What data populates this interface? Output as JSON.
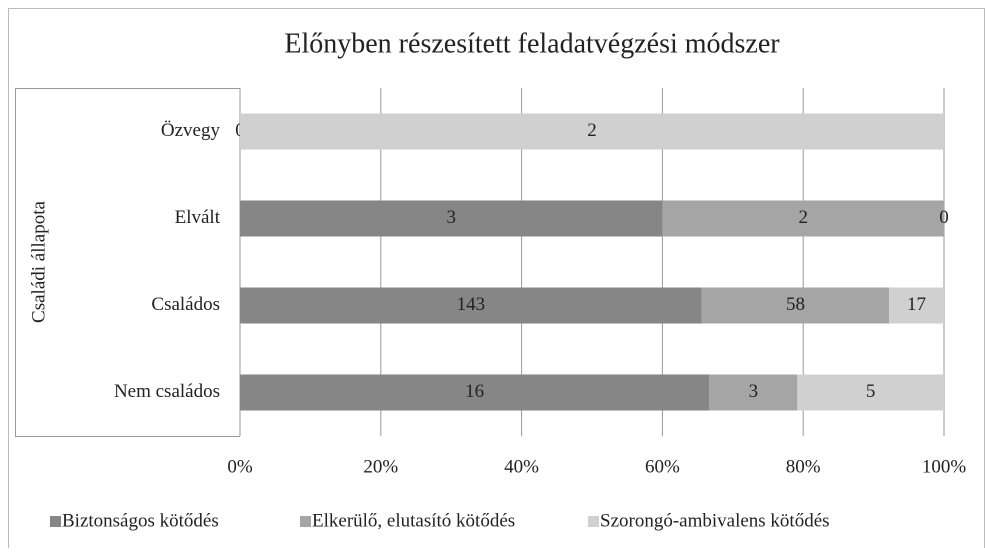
{
  "chart_data": {
    "type": "bar",
    "orientation": "horizontal",
    "stacking": "percent",
    "title": "Előnyben részesített feladatvégzési módszer",
    "y_label": "Családi állapota",
    "categories": [
      "Özvegy",
      "Elvált",
      "Családos",
      "Nem családos"
    ],
    "series": [
      {
        "name": "Biztonságos kötődés",
        "color": "#868686",
        "values": [
          0,
          3,
          143,
          16
        ]
      },
      {
        "name": "Elkerülő, elutasító kötődés",
        "color": "#a5a5a5",
        "values": [
          null,
          2,
          58,
          3
        ]
      },
      {
        "name": "Szorongó-ambivalens kötődés",
        "color": "#d0d0d0",
        "values": [
          2,
          0,
          17,
          5
        ]
      }
    ],
    "xlim": [
      0,
      100
    ],
    "xticks": [
      {
        "value": 0,
        "label": "0%"
      },
      {
        "value": 20,
        "label": "20%"
      },
      {
        "value": 40,
        "label": "40%"
      },
      {
        "value": 60,
        "label": "60%"
      },
      {
        "value": 80,
        "label": "80%"
      },
      {
        "value": 100,
        "label": "100%"
      }
    ],
    "grid": true,
    "legend": "bottom"
  }
}
